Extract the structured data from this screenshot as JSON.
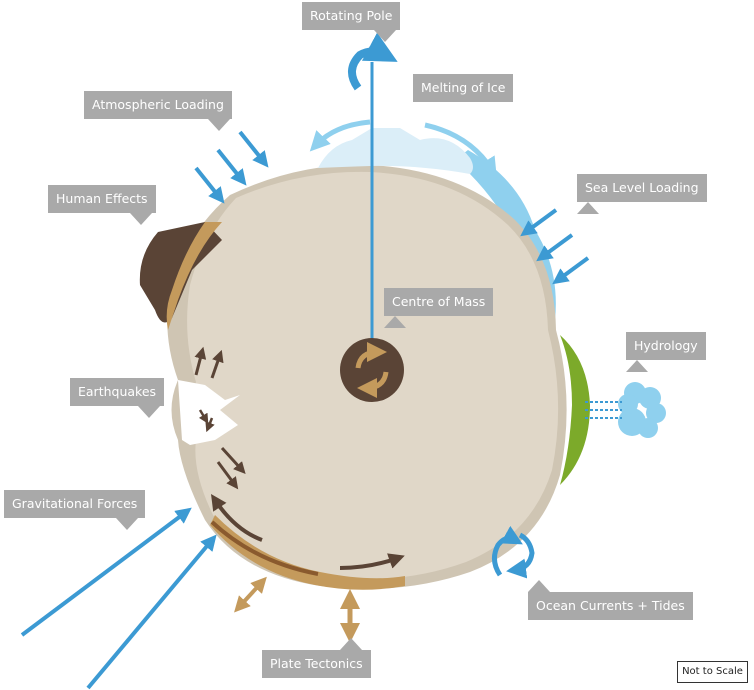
{
  "labels": {
    "rotating_pole": "Rotating Pole",
    "melting_ice": "Melting of Ice",
    "atmospheric_loading": "Atmospheric Loading",
    "sea_level_loading": "Sea Level Loading",
    "human_effects": "Human Effects",
    "centre_of_mass": "Centre of Mass",
    "hydrology": "Hydrology",
    "earthquakes": "Earthquakes",
    "gravitational_forces": "Gravitational Forces",
    "ocean_currents_tides": "Ocean Currents + Tides",
    "plate_tectonics": "Plate Tectonics"
  },
  "scale_note": "Not to Scale",
  "colors": {
    "earth": "#e0d7c8",
    "earth_shadow": "#cfc5b3",
    "label_bg": "#a9a9a9",
    "blue_arrow": "#3c9ad3",
    "ice": "#dbeef8",
    "water": "#8fd0ee",
    "rock": "#5a4436",
    "tan": "#c49a5c",
    "green": "#7caa2a",
    "core": "#5a4436"
  }
}
